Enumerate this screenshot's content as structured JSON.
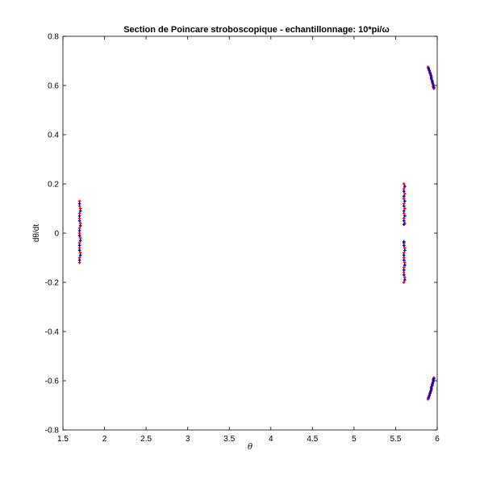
{
  "chart_data": {
    "type": "scatter",
    "title": "Section de Poincare stroboscopique  - echantillonnage: 10*pi/ω",
    "xlabel": "θ",
    "ylabel": "dθ/dt",
    "xlim": [
      1.5,
      6
    ],
    "ylim": [
      -0.8,
      0.8
    ],
    "xticks": [
      "1.5",
      "2",
      "2.5",
      "3",
      "3.5",
      "4",
      "4.5",
      "5",
      "5.5",
      "6"
    ],
    "yticks": [
      "-0.8",
      "-0.6",
      "-0.4",
      "-0.2",
      "0",
      "0.2",
      "0.4",
      "0.6",
      "0.8"
    ],
    "grid": false,
    "colors": {
      "series_a": "#ff0000",
      "series_b": "#0000cc",
      "axes": "#000000"
    },
    "series": [
      {
        "values": [
          [
            1.7,
            0.13
          ],
          [
            1.7,
            0.11
          ],
          [
            1.71,
            0.1
          ],
          [
            1.7,
            0.08
          ],
          [
            1.7,
            0.06
          ],
          [
            1.71,
            0.04
          ],
          [
            1.7,
            0.02
          ],
          [
            1.7,
            0.0
          ],
          [
            1.71,
            -0.02
          ],
          [
            1.7,
            -0.04
          ],
          [
            1.7,
            -0.06
          ],
          [
            1.71,
            -0.08
          ],
          [
            1.7,
            -0.1
          ],
          [
            1.7,
            -0.12
          ],
          [
            5.6,
            0.2
          ],
          [
            5.6,
            0.18
          ],
          [
            5.61,
            0.16
          ],
          [
            5.6,
            0.14
          ],
          [
            5.6,
            0.12
          ],
          [
            5.61,
            0.1
          ],
          [
            5.6,
            0.08
          ],
          [
            5.6,
            0.06
          ],
          [
            5.61,
            0.04
          ],
          [
            5.6,
            -0.04
          ],
          [
            5.61,
            -0.06
          ],
          [
            5.6,
            -0.08
          ],
          [
            5.6,
            -0.1
          ],
          [
            5.61,
            -0.12
          ],
          [
            5.6,
            -0.14
          ],
          [
            5.6,
            -0.16
          ],
          [
            5.61,
            -0.18
          ],
          [
            5.6,
            -0.2
          ],
          [
            5.89,
            0.675
          ],
          [
            5.9,
            0.665
          ],
          [
            5.91,
            0.655
          ],
          [
            5.92,
            0.645
          ],
          [
            5.93,
            0.635
          ],
          [
            5.93,
            0.625
          ],
          [
            5.94,
            0.615
          ],
          [
            5.95,
            0.605
          ],
          [
            5.95,
            0.595
          ],
          [
            5.96,
            0.588
          ],
          [
            5.89,
            -0.675
          ],
          [
            5.9,
            -0.665
          ],
          [
            5.91,
            -0.655
          ],
          [
            5.92,
            -0.645
          ],
          [
            5.93,
            -0.635
          ],
          [
            5.93,
            -0.625
          ],
          [
            5.94,
            -0.615
          ],
          [
            5.95,
            -0.605
          ],
          [
            5.95,
            -0.595
          ],
          [
            5.96,
            -0.588
          ]
        ]
      },
      {
        "values": [
          [
            1.7,
            0.12
          ],
          [
            1.71,
            0.09
          ],
          [
            1.7,
            0.07
          ],
          [
            1.7,
            0.05
          ],
          [
            1.71,
            0.03
          ],
          [
            1.7,
            0.01
          ],
          [
            1.7,
            -0.01
          ],
          [
            1.71,
            -0.03
          ],
          [
            1.7,
            -0.05
          ],
          [
            1.7,
            -0.07
          ],
          [
            1.71,
            -0.09
          ],
          [
            1.7,
            -0.11
          ],
          [
            5.61,
            0.19
          ],
          [
            5.6,
            0.17
          ],
          [
            5.6,
            0.15
          ],
          [
            5.61,
            0.13
          ],
          [
            5.6,
            0.11
          ],
          [
            5.6,
            0.09
          ],
          [
            5.61,
            0.07
          ],
          [
            5.6,
            0.05
          ],
          [
            5.6,
            0.035
          ],
          [
            5.6,
            -0.035
          ],
          [
            5.6,
            -0.05
          ],
          [
            5.61,
            -0.07
          ],
          [
            5.6,
            -0.09
          ],
          [
            5.6,
            -0.11
          ],
          [
            5.61,
            -0.13
          ],
          [
            5.6,
            -0.15
          ],
          [
            5.6,
            -0.17
          ],
          [
            5.61,
            -0.19
          ],
          [
            5.895,
            0.67
          ],
          [
            5.905,
            0.66
          ],
          [
            5.915,
            0.65
          ],
          [
            5.925,
            0.64
          ],
          [
            5.93,
            0.63
          ],
          [
            5.94,
            0.62
          ],
          [
            5.945,
            0.61
          ],
          [
            5.955,
            0.6
          ],
          [
            5.96,
            0.592
          ],
          [
            5.895,
            -0.67
          ],
          [
            5.905,
            -0.66
          ],
          [
            5.915,
            -0.65
          ],
          [
            5.925,
            -0.64
          ],
          [
            5.93,
            -0.63
          ],
          [
            5.94,
            -0.62
          ],
          [
            5.945,
            -0.61
          ],
          [
            5.955,
            -0.6
          ],
          [
            5.96,
            -0.592
          ]
        ]
      }
    ]
  }
}
